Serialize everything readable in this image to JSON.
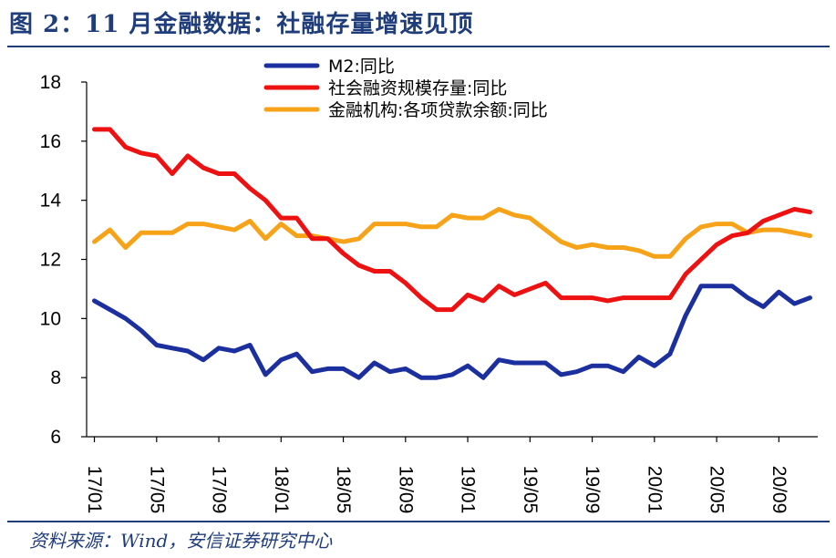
{
  "title": "图 2：11 月金融数据：社融存量增速见顶",
  "source": "资料来源：Wind，安信证券研究中心",
  "chart_data": {
    "type": "line",
    "ylim": [
      6,
      18
    ],
    "yticks": [
      "6",
      "8",
      "10",
      "12",
      "14",
      "16",
      "18"
    ],
    "xticks": [
      "17/01",
      "17/05",
      "17/09",
      "18/01",
      "18/05",
      "18/09",
      "19/01",
      "19/05",
      "19/09",
      "20/01",
      "20/05",
      "20/09"
    ],
    "x": [
      "17/01",
      "17/02",
      "17/03",
      "17/04",
      "17/05",
      "17/06",
      "17/07",
      "17/08",
      "17/09",
      "17/10",
      "17/11",
      "17/12",
      "18/01",
      "18/02",
      "18/03",
      "18/04",
      "18/05",
      "18/06",
      "18/07",
      "18/08",
      "18/09",
      "18/10",
      "18/11",
      "18/12",
      "19/01",
      "19/02",
      "19/03",
      "19/04",
      "19/05",
      "19/06",
      "19/07",
      "19/08",
      "19/09",
      "19/10",
      "19/11",
      "19/12",
      "20/01",
      "20/02",
      "20/03",
      "20/04",
      "20/05",
      "20/06",
      "20/07",
      "20/08",
      "20/09",
      "20/10",
      "20/11"
    ],
    "legend_position": "top-center",
    "grid": false,
    "series": [
      {
        "name": "M2:同比",
        "color": "#1b2f9e",
        "values": [
          10.6,
          10.3,
          10.0,
          9.6,
          9.1,
          9.0,
          8.9,
          8.6,
          9.0,
          8.9,
          9.1,
          8.1,
          8.6,
          8.8,
          8.2,
          8.3,
          8.3,
          8.0,
          8.5,
          8.2,
          8.3,
          8.0,
          8.0,
          8.1,
          8.4,
          8.0,
          8.6,
          8.5,
          8.5,
          8.5,
          8.1,
          8.2,
          8.4,
          8.4,
          8.2,
          8.7,
          8.4,
          8.8,
          10.1,
          11.1,
          11.1,
          11.1,
          10.7,
          10.4,
          10.9,
          10.5,
          10.7
        ]
      },
      {
        "name": "社会融资规模存量:同比",
        "color": "#ee1111",
        "values": [
          16.4,
          16.4,
          15.8,
          15.6,
          15.5,
          14.9,
          15.5,
          15.1,
          14.9,
          14.9,
          14.4,
          14.0,
          13.4,
          13.4,
          12.7,
          12.7,
          12.2,
          11.8,
          11.6,
          11.6,
          11.2,
          10.7,
          10.3,
          10.3,
          10.8,
          10.6,
          11.1,
          10.8,
          11.0,
          11.2,
          10.7,
          10.7,
          10.7,
          10.6,
          10.7,
          10.7,
          10.7,
          10.7,
          11.5,
          12.0,
          12.5,
          12.8,
          12.9,
          13.3,
          13.5,
          13.7,
          13.6
        ]
      },
      {
        "name": "金融机构:各项贷款余额:同比",
        "color": "#f6a31a",
        "values": [
          12.6,
          13.0,
          12.4,
          12.9,
          12.9,
          12.9,
          13.2,
          13.2,
          13.1,
          13.0,
          13.3,
          12.7,
          13.2,
          12.8,
          12.8,
          12.7,
          12.6,
          12.7,
          13.2,
          13.2,
          13.2,
          13.1,
          13.1,
          13.5,
          13.4,
          13.4,
          13.7,
          13.5,
          13.4,
          13.0,
          12.6,
          12.4,
          12.5,
          12.4,
          12.4,
          12.3,
          12.1,
          12.1,
          12.7,
          13.1,
          13.2,
          13.2,
          12.9,
          13.0,
          13.0,
          12.9,
          12.8
        ]
      }
    ]
  }
}
